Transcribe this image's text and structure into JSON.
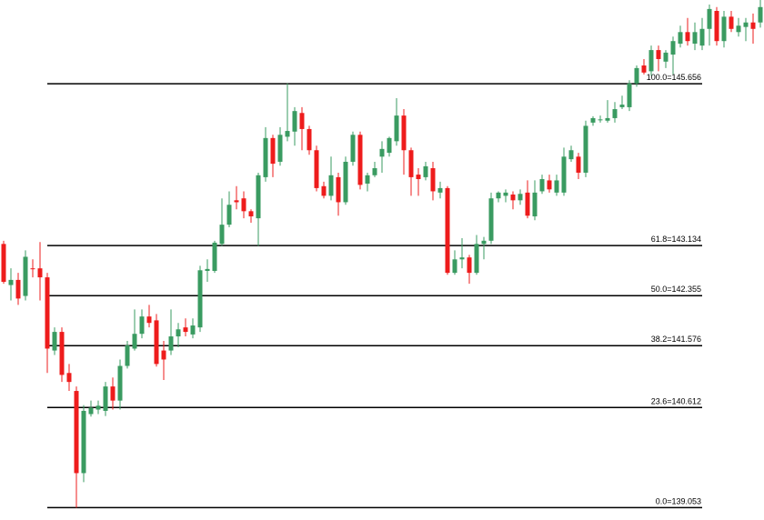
{
  "chart_data": {
    "type": "candlestick",
    "ylim": [
      138.86,
      146.96
    ],
    "up_color": "#3a9b61",
    "down_color": "#ee1c1c",
    "level_color": "#000000",
    "open": [
      143.16,
      142.52,
      142.6,
      142.35,
      142.78,
      142.78,
      142.64,
      141.5,
      141.79,
      141.15,
      140.87,
      139.59,
      140.51,
      140.58,
      140.56,
      140.94,
      140.72,
      141.26,
      141.53,
      141.76,
      142.03,
      141.97,
      141.5,
      141.5,
      141.72,
      141.86,
      141.75,
      141.86,
      142.74,
      142.74,
      143.16,
      143.46,
      143.84,
      143.87,
      143.67,
      143.56,
      144.2,
      144.81,
      144.44,
      144.83,
      144.91,
      145.2,
      144.95,
      144.62,
      144.06,
      143.91,
      144.2,
      143.81,
      144.44,
      144.86,
      144.1,
      144.23,
      144.52,
      144.58,
      144.76,
      145.16,
      144.62,
      144.24,
      144.2,
      144.34,
      143.96,
      144.03,
      142.71,
      142.92,
      142.95,
      142.71,
      143.16,
      143.21,
      143.87,
      143.91,
      143.93,
      143.84,
      143.96,
      143.59,
      143.98,
      144.15,
      143.96,
      143.96,
      144.48,
      144.52,
      144.27,
      145.05,
      145.09,
      145.08,
      145.12,
      145.29,
      145.29,
      145.66,
      145.94,
      145.85,
      146.18,
      146.0,
      146.11,
      146.28,
      146.46,
      146.28,
      146.25,
      146.51,
      146.79,
      146.32,
      146.7,
      146.46,
      146.54,
      146.61,
      146.61
    ],
    "high": [
      143.21,
      142.78,
      142.71,
      143.06,
      142.92,
      143.19,
      142.71,
      141.86,
      141.86,
      141.29,
      140.94,
      140.65,
      140.72,
      140.72,
      141.01,
      141.08,
      141.36,
      141.65,
      142.14,
      142.14,
      142.21,
      142.07,
      141.65,
      142.14,
      141.93,
      142.0,
      142.0,
      142.82,
      142.92,
      143.21,
      143.87,
      143.98,
      144.06,
      143.98,
      143.7,
      144.27,
      144.98,
      144.86,
      144.98,
      145.66,
      145.29,
      145.29,
      145.0,
      144.69,
      144.13,
      144.52,
      144.27,
      144.52,
      144.91,
      144.91,
      144.27,
      144.44,
      144.76,
      144.83,
      145.43,
      145.26,
      144.66,
      144.34,
      144.44,
      144.44,
      144.13,
      144.06,
      143.06,
      143.25,
      142.99,
      143.3,
      143.27,
      143.96,
      143.98,
      144.01,
      143.98,
      144.01,
      144.15,
      144.15,
      144.24,
      144.24,
      144.24,
      144.66,
      144.69,
      144.58,
      145.08,
      145.15,
      145.16,
      145.4,
      145.37,
      145.47,
      145.71,
      145.94,
      146.04,
      146.25,
      146.25,
      146.18,
      146.39,
      146.56,
      146.68,
      146.61,
      146.68,
      146.89,
      146.85,
      146.79,
      146.79,
      146.68,
      146.68,
      146.75,
      146.96
    ],
    "low": [
      142.54,
      142.28,
      142.21,
      142.28,
      142.64,
      142.28,
      141.15,
      141.43,
      141.01,
      140.87,
      139.05,
      139.45,
      140.47,
      140.51,
      140.48,
      140.58,
      140.58,
      141.22,
      141.5,
      141.69,
      141.86,
      141.25,
      141.04,
      141.43,
      141.55,
      141.72,
      141.69,
      141.79,
      142.57,
      142.71,
      143.13,
      143.42,
      143.7,
      143.56,
      143.49,
      143.13,
      144.13,
      144.2,
      144.38,
      144.76,
      144.69,
      144.62,
      144.55,
      143.98,
      143.87,
      143.84,
      143.6,
      143.77,
      144.38,
      144.01,
      143.98,
      144.2,
      144.27,
      144.52,
      144.69,
      144.24,
      143.91,
      143.91,
      144.15,
      143.84,
      143.87,
      142.68,
      142.68,
      142.78,
      142.54,
      142.68,
      142.92,
      143.16,
      143.81,
      143.81,
      143.7,
      143.77,
      143.56,
      143.53,
      143.94,
      143.96,
      143.91,
      143.91,
      144.44,
      144.17,
      144.2,
      145.0,
      145.05,
      145.05,
      145.05,
      145.26,
      145.23,
      145.61,
      145.8,
      145.78,
      145.85,
      145.9,
      145.8,
      146.22,
      146.25,
      146.18,
      146.18,
      146.25,
      146.25,
      146.22,
      146.46,
      146.39,
      146.32,
      146.28,
      146.53
    ],
    "close": [
      142.57,
      142.6,
      142.31,
      142.96,
      142.77,
      142.64,
      141.53,
      141.79,
      141.12,
      141.01,
      139.59,
      140.56,
      140.61,
      140.64,
      140.94,
      140.72,
      141.26,
      141.58,
      141.76,
      142.03,
      141.93,
      141.29,
      141.36,
      141.72,
      141.83,
      141.79,
      141.89,
      142.75,
      142.77,
      143.18,
      143.46,
      143.77,
      143.81,
      143.67,
      143.59,
      144.23,
      144.81,
      144.41,
      144.86,
      144.92,
      145.23,
      144.95,
      144.62,
      144.03,
      143.91,
      144.23,
      143.81,
      144.44,
      144.86,
      144.08,
      144.23,
      144.34,
      144.64,
      144.81,
      145.16,
      144.62,
      144.2,
      144.17,
      144.37,
      143.98,
      144.03,
      142.71,
      142.92,
      142.95,
      142.71,
      143.16,
      143.21,
      143.87,
      143.96,
      143.96,
      143.84,
      143.94,
      143.6,
      143.96,
      144.17,
      144.01,
      144.15,
      144.52,
      144.62,
      144.27,
      145.0,
      145.12,
      145.1,
      145.12,
      145.26,
      145.33,
      145.66,
      145.9,
      145.83,
      146.18,
      146.04,
      146.14,
      146.32,
      146.46,
      146.32,
      146.46,
      146.51,
      146.82,
      146.32,
      146.7,
      146.51,
      146.56,
      146.61,
      146.51,
      146.85
    ],
    "levels": [
      {
        "value": 145.656,
        "label": "100.0=145.656"
      },
      {
        "value": 143.134,
        "label": "61.8=143.134"
      },
      {
        "value": 142.355,
        "label": "50.0=142.355"
      },
      {
        "value": 141.576,
        "label": "38.2=141.576"
      },
      {
        "value": 140.612,
        "label": "23.6=140.612"
      },
      {
        "value": 139.053,
        "label": "0.0=139.053"
      }
    ]
  }
}
